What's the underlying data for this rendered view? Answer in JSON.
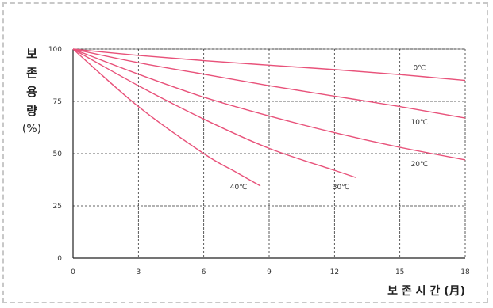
{
  "chart_data": {
    "type": "line",
    "ylabel_chars": [
      "보",
      "존",
      "용",
      "량"
    ],
    "ylabel_unit": "(%)",
    "xlabel": "보 존 시 간 (月)",
    "xlim": [
      0,
      18
    ],
    "ylim": [
      0,
      100
    ],
    "xticks": [
      0,
      3,
      6,
      9,
      12,
      15,
      18
    ],
    "yticks": [
      0,
      25,
      50,
      75,
      100
    ],
    "grid": true,
    "colors": {
      "series": "#e8527a",
      "grid": "#333333",
      "axis": "#222222"
    },
    "series": [
      {
        "name": "0℃",
        "label_at": [
          15.9,
          90
        ],
        "points": [
          [
            0,
            100
          ],
          [
            3,
            97
          ],
          [
            6,
            94.5
          ],
          [
            9,
            92.3
          ],
          [
            12,
            90.2
          ],
          [
            15,
            87.8
          ],
          [
            18,
            85
          ]
        ]
      },
      {
        "name": "10℃",
        "label_at": [
          15.9,
          64
        ],
        "points": [
          [
            0,
            100
          ],
          [
            3,
            93.5
          ],
          [
            6,
            88
          ],
          [
            9,
            82.5
          ],
          [
            12,
            77.5
          ],
          [
            15,
            72.5
          ],
          [
            18,
            67
          ]
        ]
      },
      {
        "name": "20℃",
        "label_at": [
          15.9,
          44
        ],
        "points": [
          [
            0,
            100
          ],
          [
            3,
            88
          ],
          [
            6,
            77
          ],
          [
            9,
            68
          ],
          [
            12,
            60
          ],
          [
            15,
            53
          ],
          [
            18,
            47
          ]
        ]
      },
      {
        "name": "30℃",
        "label_at": [
          12.3,
          33
        ],
        "points": [
          [
            0,
            100
          ],
          [
            3,
            82.5
          ],
          [
            6,
            66.5
          ],
          [
            9,
            52.5
          ],
          [
            12,
            42
          ],
          [
            13,
            38.5
          ]
        ]
      },
      {
        "name": "40℃",
        "label_at": [
          7.6,
          33
        ],
        "points": [
          [
            0,
            100
          ],
          [
            3,
            72.5
          ],
          [
            6,
            50
          ],
          [
            7.5,
            41
          ],
          [
            8.6,
            34.5
          ]
        ]
      }
    ]
  }
}
